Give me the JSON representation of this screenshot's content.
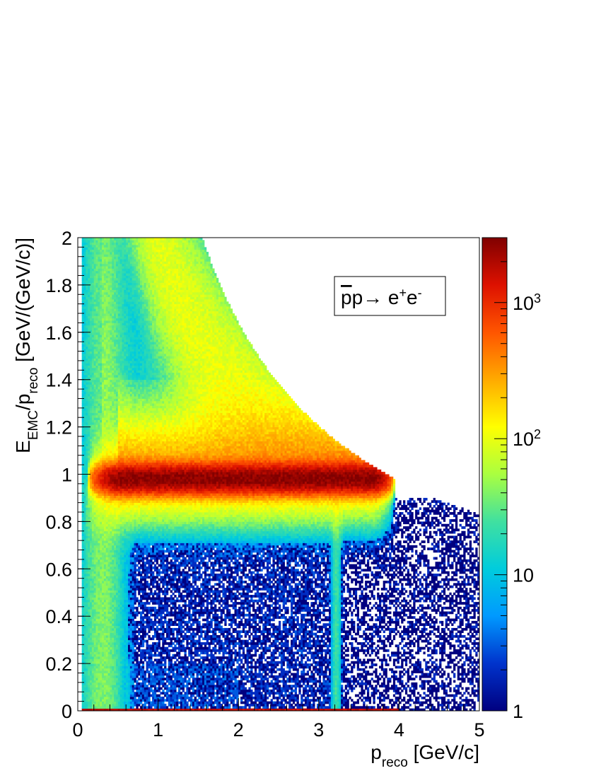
{
  "chart_data": {
    "type": "heatmap",
    "title": "",
    "xlabel": {
      "main": "p",
      "sub": "reco",
      "unit": " [GeV/c]"
    },
    "ylabel": {
      "main": "E",
      "sub1": "EMC",
      "mid": "/p",
      "sub2": "reco",
      "unit": " [GeV/(GeV/c)]"
    },
    "xlim": [
      0,
      5
    ],
    "ylim": [
      0,
      2
    ],
    "x_ticks": [
      0,
      1,
      2,
      3,
      4,
      5
    ],
    "x_tick_labels": [
      "0",
      "1",
      "2",
      "3",
      "4",
      "5"
    ],
    "y_ticks": [
      0,
      0.2,
      0.4,
      0.6,
      0.8,
      1,
      1.2,
      1.4,
      1.6,
      1.8,
      2
    ],
    "y_tick_labels": [
      "0",
      "0.2",
      "0.4",
      "0.6",
      "0.8",
      "1",
      "1.2",
      "1.4",
      "1.6",
      "1.8",
      "2"
    ],
    "colorbar": {
      "scale": "log",
      "range": [
        1,
        3000
      ],
      "ticks": [
        1,
        10,
        100,
        1000
      ],
      "tick_labels": [
        {
          "base": "1",
          "exp": ""
        },
        {
          "base": "10",
          "exp": ""
        },
        {
          "base": "10",
          "exp": "2"
        },
        {
          "base": "10",
          "exp": "3"
        }
      ],
      "colormap": [
        "#000080",
        "#0033cc",
        "#0099ff",
        "#00ccdd",
        "#40e0a0",
        "#aaff40",
        "#ffff00",
        "#ffaa00",
        "#ff5500",
        "#dd1100",
        "#800000"
      ]
    },
    "legend": {
      "position": "top-right",
      "text": {
        "bar": "p",
        "mid": "p→ e",
        "sup1": "+",
        "mid2": "e",
        "sup2": "-"
      }
    },
    "features": [
      {
        "name": "electron band",
        "x_range": [
          0.15,
          3.9
        ],
        "y_center": 0.98,
        "peak_counts": 2500
      },
      {
        "name": "diagonal upper band",
        "x_range": [
          0.3,
          4.0
        ],
        "y_from": 2.0,
        "y_to": 0.98
      },
      {
        "name": "vertical stripe",
        "x": 3.2,
        "y_range": [
          0,
          0.98
        ]
      },
      {
        "name": "low E/p band",
        "x_range": [
          0,
          0.7
        ],
        "y_range": [
          0,
          2
        ]
      },
      {
        "name": "sparse hadron region",
        "x_range": [
          0.6,
          5.0
        ],
        "y_range": [
          0,
          0.85
        ],
        "typical_counts": 2
      }
    ]
  }
}
